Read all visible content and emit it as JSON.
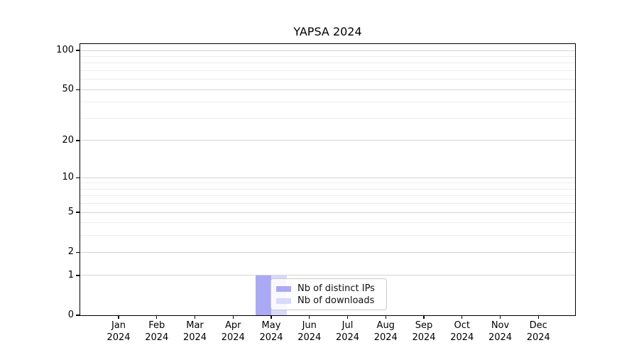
{
  "chart_data": {
    "type": "bar",
    "title": "YAPSA 2024",
    "x_categories": [
      {
        "month": "Jan",
        "year": "2024"
      },
      {
        "month": "Feb",
        "year": "2024"
      },
      {
        "month": "Mar",
        "year": "2024"
      },
      {
        "month": "Apr",
        "year": "2024"
      },
      {
        "month": "May",
        "year": "2024"
      },
      {
        "month": "Jun",
        "year": "2024"
      },
      {
        "month": "Jul",
        "year": "2024"
      },
      {
        "month": "Aug",
        "year": "2024"
      },
      {
        "month": "Sep",
        "year": "2024"
      },
      {
        "month": "Oct",
        "year": "2024"
      },
      {
        "month": "Nov",
        "year": "2024"
      },
      {
        "month": "Dec",
        "year": "2024"
      }
    ],
    "series": [
      {
        "name": "Nb of distinct IPs",
        "color": "#a9a9f4",
        "values": [
          0,
          0,
          0,
          0,
          1,
          0,
          0,
          0,
          0,
          0,
          0,
          0
        ]
      },
      {
        "name": "Nb of downloads",
        "color": "#d9d9f9",
        "values": [
          0,
          0,
          0,
          0,
          1,
          0,
          0,
          0,
          0,
          0,
          0,
          0
        ]
      }
    ],
    "yscale": "log1p",
    "yticks": [
      0,
      1,
      2,
      5,
      10,
      20,
      50,
      100
    ],
    "yticks_minor": [
      3,
      4,
      6,
      7,
      8,
      9,
      30,
      40,
      60,
      70,
      80,
      90
    ],
    "ylim": [
      0,
      112
    ],
    "xlabel": "",
    "ylabel": "",
    "grid": true,
    "legend_position": "lower center (inside plot)"
  },
  "colors": {
    "grid_major": "#d4d4d4",
    "grid_minor": "#ededed",
    "axis": "#000000",
    "legend_border": "#cbcbcb"
  }
}
